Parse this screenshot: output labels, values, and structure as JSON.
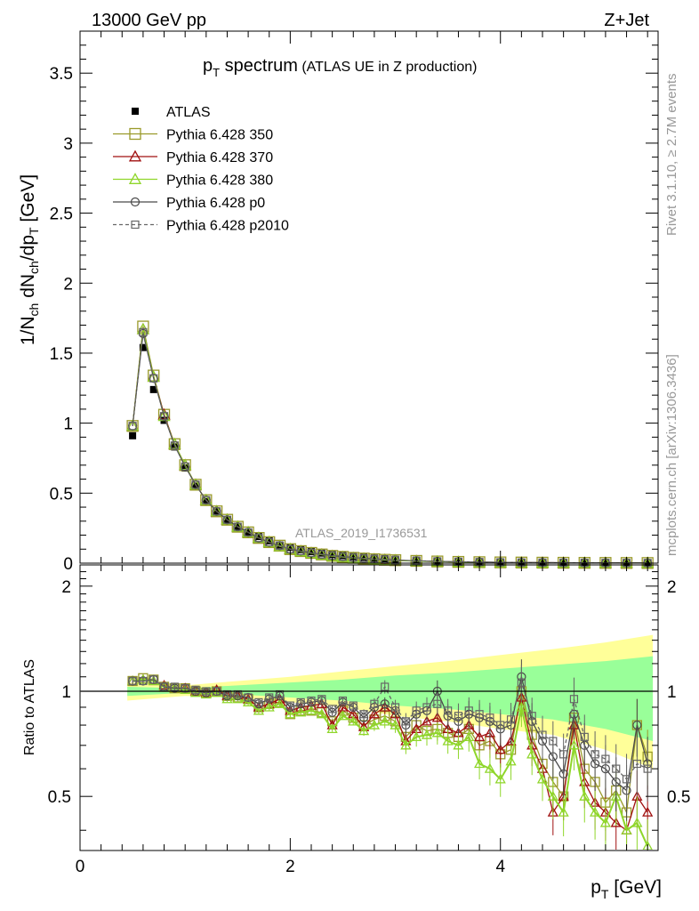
{
  "header": {
    "energy_label": "13000 GeV pp",
    "process_label": "Z+Jet",
    "side_label_top": "Rivet 3.1.10, ≥ 2.7M events",
    "side_label_bottom": "mcplots.cern.ch [arXiv:1306.3436]",
    "watermark": "ATLAS_2019_I1736531"
  },
  "chart_data": [
    {
      "type": "line",
      "panel": "main",
      "title": "p_T spectrum",
      "subtitle": "(ATLAS UE in Z production)",
      "ylabel": "1/N_ch dN_ch/dp_T [GeV]",
      "xlabel": "p_T [GeV]",
      "xlim": [
        0,
        5.5
      ],
      "ylim": [
        0,
        3.8
      ],
      "yticks": [
        0,
        0.5,
        1,
        1.5,
        2,
        2.5,
        3,
        3.5
      ],
      "ytick_labels": [
        "0",
        "0.5",
        "1",
        "1.5",
        "2",
        "2.5",
        "3",
        "3.5"
      ],
      "xticks": [
        0,
        2,
        4
      ],
      "xtick_labels": [
        "0",
        "2",
        "4"
      ],
      "x": [
        0.5,
        0.6,
        0.7,
        0.8,
        0.9,
        1.0,
        1.1,
        1.2,
        1.3,
        1.4,
        1.5,
        1.6,
        1.7,
        1.8,
        1.9,
        2.0,
        2.1,
        2.2,
        2.3,
        2.4,
        2.5,
        2.6,
        2.7,
        2.8,
        2.9,
        3.0,
        3.2,
        3.4,
        3.6,
        3.8,
        4.0,
        4.2,
        4.4,
        4.6,
        4.8,
        5.0,
        5.2,
        5.4
      ],
      "series": [
        {
          "name": "ATLAS",
          "marker": "filled-square",
          "line": "none",
          "color": "#000000",
          "values": [
            0.91,
            1.54,
            1.24,
            1.02,
            0.83,
            0.68,
            0.55,
            0.44,
            0.37,
            0.31,
            0.26,
            0.22,
            0.19,
            0.16,
            0.13,
            0.113,
            0.097,
            0.083,
            0.072,
            0.062,
            0.054,
            0.047,
            0.041,
            0.036,
            0.031,
            0.027,
            0.021,
            0.016,
            0.013,
            0.01,
            0.008,
            0.0065,
            0.005,
            0.004,
            0.0033,
            0.0027,
            0.0022,
            0.0018
          ]
        },
        {
          "name": "Pythia 6.428 350",
          "marker": "open-square",
          "line": "solid",
          "color": "#9a9a2a",
          "values": [
            0.98,
            1.69,
            1.34,
            1.06,
            0.85,
            0.7,
            0.56,
            0.45,
            0.37,
            0.31,
            0.26,
            0.22,
            0.18,
            0.15,
            0.125,
            0.1,
            0.086,
            0.073,
            0.062,
            0.052,
            0.045,
            0.038,
            0.033,
            0.028,
            0.024,
            0.021,
            0.016,
            0.012,
            0.009,
            0.007,
            0.0055,
            0.0044,
            0.0034,
            0.0027,
            0.0021,
            0.0017,
            0.0013,
            0.001
          ]
        },
        {
          "name": "Pythia 6.428 370",
          "marker": "open-triangle",
          "line": "solid",
          "color": "#a01010",
          "values": [
            0.98,
            1.67,
            1.33,
            1.06,
            0.85,
            0.7,
            0.56,
            0.45,
            0.37,
            0.31,
            0.26,
            0.22,
            0.18,
            0.15,
            0.12,
            0.1,
            0.085,
            0.072,
            0.061,
            0.051,
            0.044,
            0.037,
            0.032,
            0.027,
            0.023,
            0.02,
            0.015,
            0.011,
            0.0085,
            0.0065,
            0.005,
            0.004,
            0.003,
            0.0023,
            0.0018,
            0.0014,
            0.0011,
            0.0009
          ]
        },
        {
          "name": "Pythia 6.428 380",
          "marker": "open-triangle",
          "line": "solid",
          "color": "#8fd62a",
          "values": [
            0.98,
            1.67,
            1.33,
            1.05,
            0.85,
            0.7,
            0.56,
            0.45,
            0.37,
            0.31,
            0.26,
            0.22,
            0.18,
            0.15,
            0.12,
            0.1,
            0.084,
            0.071,
            0.06,
            0.05,
            0.043,
            0.036,
            0.031,
            0.026,
            0.022,
            0.019,
            0.014,
            0.011,
            0.008,
            0.006,
            0.0046,
            0.0036,
            0.0028,
            0.0022,
            0.0017,
            0.0013,
            0.001,
            0.0008
          ]
        },
        {
          "name": "Pythia 6.428 p0",
          "marker": "open-circle",
          "line": "solid",
          "color": "#4a4a4a",
          "values": [
            0.98,
            1.64,
            1.32,
            1.05,
            0.84,
            0.69,
            0.56,
            0.45,
            0.37,
            0.31,
            0.26,
            0.22,
            0.18,
            0.15,
            0.125,
            0.1,
            0.087,
            0.074,
            0.063,
            0.054,
            0.046,
            0.04,
            0.034,
            0.03,
            0.026,
            0.022,
            0.017,
            0.013,
            0.01,
            0.008,
            0.006,
            0.0048,
            0.0038,
            0.003,
            0.0024,
            0.0019,
            0.0015,
            0.0012
          ]
        },
        {
          "name": "Pythia 6.428 p2010",
          "marker": "open-square-small",
          "line": "dashed",
          "color": "#666666",
          "values": [
            0.98,
            1.65,
            1.32,
            1.05,
            0.84,
            0.69,
            0.56,
            0.45,
            0.37,
            0.31,
            0.26,
            0.22,
            0.18,
            0.15,
            0.125,
            0.1,
            0.087,
            0.074,
            0.063,
            0.054,
            0.046,
            0.04,
            0.034,
            0.03,
            0.026,
            0.022,
            0.017,
            0.013,
            0.01,
            0.008,
            0.0062,
            0.005,
            0.004,
            0.0031,
            0.0025,
            0.002,
            0.0016,
            0.0013
          ]
        }
      ]
    },
    {
      "type": "line",
      "panel": "ratio",
      "ylabel": "Ratio to ATLAS",
      "xlabel": "p_T [GeV]",
      "xlim": [
        0,
        5.5
      ],
      "ylim": [
        0.35,
        2.3
      ],
      "yticks": [
        0.5,
        1,
        2
      ],
      "ytick_labels": [
        "0.5",
        "1",
        "2"
      ],
      "x": [
        0.5,
        0.6,
        0.7,
        0.8,
        0.9,
        1.0,
        1.1,
        1.2,
        1.3,
        1.4,
        1.5,
        1.6,
        1.7,
        1.8,
        1.9,
        2.0,
        2.1,
        2.2,
        2.3,
        2.4,
        2.5,
        2.6,
        2.7,
        2.8,
        2.9,
        3.0,
        3.1,
        3.2,
        3.3,
        3.4,
        3.5,
        3.6,
        3.7,
        3.8,
        3.9,
        4.0,
        4.1,
        4.2,
        4.3,
        4.4,
        4.5,
        4.6,
        4.7,
        4.8,
        4.9,
        5.0,
        5.1,
        5.2,
        5.3,
        5.4
      ],
      "band_x": [
        0.45,
        1.0,
        1.5,
        2.0,
        2.5,
        3.0,
        3.5,
        4.0,
        4.5,
        5.0,
        5.45
      ],
      "band_outer_lo": [
        0.94,
        0.97,
        0.96,
        0.93,
        0.9,
        0.85,
        0.82,
        0.78,
        0.75,
        0.68,
        0.6
      ],
      "band_outer_hi": [
        1.06,
        1.04,
        1.07,
        1.1,
        1.14,
        1.18,
        1.22,
        1.27,
        1.32,
        1.38,
        1.45
      ],
      "band_inner_lo": [
        0.97,
        0.99,
        0.98,
        0.96,
        0.94,
        0.91,
        0.89,
        0.86,
        0.83,
        0.78,
        0.72
      ],
      "band_inner_hi": [
        1.03,
        1.02,
        1.04,
        1.06,
        1.08,
        1.11,
        1.13,
        1.16,
        1.19,
        1.22,
        1.26
      ],
      "series": [
        {
          "name": "Pythia 6.428 350",
          "color": "#9a9a2a",
          "values": [
            1.07,
            1.09,
            1.08,
            1.03,
            1.02,
            1.02,
            1.0,
            0.99,
            1.0,
            0.97,
            0.96,
            0.95,
            0.9,
            0.92,
            0.93,
            0.86,
            0.88,
            0.88,
            0.87,
            0.82,
            0.88,
            0.84,
            0.8,
            0.83,
            0.85,
            0.82,
            0.74,
            0.8,
            0.77,
            0.78,
            0.76,
            0.74,
            0.78,
            0.7,
            0.72,
            0.66,
            0.68,
            1.0,
            0.75,
            0.62,
            0.55,
            0.5,
            0.84,
            0.6,
            0.55,
            0.48,
            0.52,
            0.45,
            0.8,
            0.65
          ]
        },
        {
          "name": "Pythia 6.428 370",
          "color": "#a01010",
          "values": [
            1.07,
            1.08,
            1.07,
            1.04,
            1.02,
            1.02,
            1.0,
            0.99,
            1.01,
            0.97,
            0.97,
            0.95,
            0.9,
            0.92,
            0.95,
            0.88,
            0.9,
            0.91,
            0.92,
            0.8,
            0.9,
            0.86,
            0.79,
            0.86,
            0.9,
            0.86,
            0.72,
            0.78,
            0.82,
            0.84,
            0.78,
            0.76,
            0.8,
            0.74,
            0.76,
            0.68,
            0.72,
            0.96,
            0.7,
            0.6,
            0.45,
            0.5,
            0.8,
            0.55,
            0.48,
            0.45,
            0.42,
            0.4,
            0.5,
            0.45
          ]
        },
        {
          "name": "Pythia 6.428 380",
          "color": "#8fd62a",
          "values": [
            1.07,
            1.08,
            1.07,
            1.03,
            1.02,
            1.01,
            0.99,
            0.98,
            0.99,
            0.95,
            0.95,
            0.93,
            0.88,
            0.9,
            0.92,
            0.86,
            0.87,
            0.88,
            0.86,
            0.78,
            0.85,
            0.82,
            0.77,
            0.8,
            0.82,
            0.8,
            0.7,
            0.74,
            0.75,
            0.76,
            0.72,
            0.7,
            0.74,
            0.62,
            0.6,
            0.56,
            0.63,
            0.9,
            0.66,
            0.56,
            0.5,
            0.45,
            0.7,
            0.5,
            0.45,
            0.42,
            0.5,
            0.4,
            0.42,
            0.36
          ]
        },
        {
          "name": "Pythia 6.428 p0",
          "color": "#4a4a4a",
          "values": [
            1.07,
            1.07,
            1.08,
            1.03,
            1.02,
            1.02,
            1.0,
            0.99,
            1.0,
            0.97,
            0.97,
            0.96,
            0.92,
            0.95,
            0.97,
            0.9,
            0.92,
            0.93,
            0.94,
            0.87,
            0.93,
            0.9,
            0.84,
            0.9,
            0.92,
            0.88,
            0.8,
            0.86,
            0.88,
            1.0,
            0.85,
            0.82,
            0.86,
            0.84,
            0.82,
            0.78,
            0.8,
            1.1,
            0.82,
            0.72,
            0.65,
            0.58,
            0.86,
            0.7,
            0.62,
            0.6,
            0.55,
            0.52,
            0.8,
            0.62
          ]
        },
        {
          "name": "Pythia 6.428 p2010",
          "color": "#666666",
          "values": [
            1.07,
            1.07,
            1.08,
            1.03,
            1.03,
            1.02,
            1.01,
            1.0,
            1.0,
            0.98,
            0.98,
            0.96,
            0.93,
            0.96,
            0.98,
            0.91,
            0.93,
            0.94,
            0.95,
            0.89,
            0.94,
            0.91,
            0.86,
            0.92,
            1.03,
            0.9,
            0.82,
            0.88,
            0.9,
            0.92,
            0.88,
            0.85,
            0.88,
            0.86,
            0.84,
            0.8,
            0.83,
            1.06,
            0.85,
            0.75,
            0.72,
            0.66,
            0.95,
            0.74,
            0.66,
            0.64,
            0.6,
            0.56,
            0.62,
            0.6
          ]
        }
      ]
    }
  ],
  "legend": {
    "entries": [
      {
        "label": "ATLAS",
        "marker": "filled-square",
        "line": "none",
        "color": "#000000"
      },
      {
        "label": "Pythia 6.428 350",
        "marker": "open-square",
        "line": "solid",
        "color": "#9a9a2a"
      },
      {
        "label": "Pythia 6.428 370",
        "marker": "open-triangle",
        "line": "solid",
        "color": "#a01010"
      },
      {
        "label": "Pythia 6.428 380",
        "marker": "open-triangle",
        "line": "solid",
        "color": "#8fd62a"
      },
      {
        "label": "Pythia 6.428 p0",
        "marker": "open-circle",
        "line": "solid",
        "color": "#4a4a4a"
      },
      {
        "label": "Pythia 6.428 p2010",
        "marker": "open-square-small",
        "line": "dashed",
        "color": "#666666"
      }
    ]
  },
  "colors": {
    "band_outer": "#ffff99",
    "band_inner": "#99ff99",
    "axis": "#000000",
    "side_text": "#999999"
  }
}
